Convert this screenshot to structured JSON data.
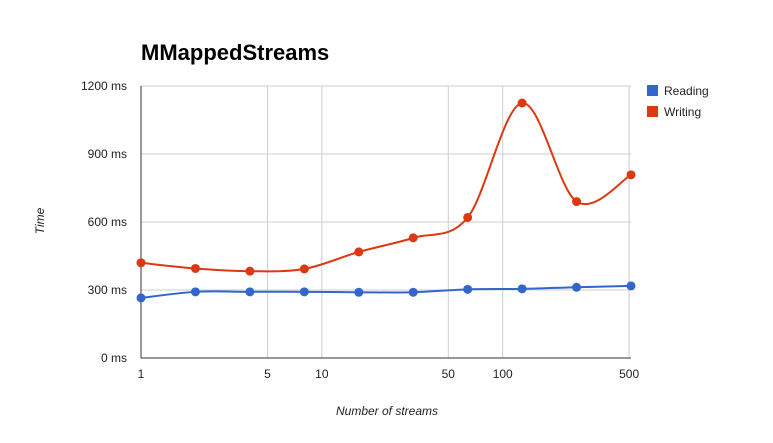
{
  "chart_data": {
    "type": "line",
    "title": "MMappedStreams",
    "xlabel": "Number of streams",
    "ylabel": "Time",
    "x_scale": "log",
    "x": [
      1,
      2,
      4,
      8,
      16,
      32,
      64,
      128,
      256,
      512
    ],
    "x_ticks": [
      {
        "value": 1,
        "label": "1"
      },
      {
        "value": 5,
        "label": "5"
      },
      {
        "value": 10,
        "label": "10"
      },
      {
        "value": 50,
        "label": "50"
      },
      {
        "value": 100,
        "label": "100"
      },
      {
        "value": 500,
        "label": "500"
      }
    ],
    "ylim": [
      0,
      1200
    ],
    "y_ticks": [
      {
        "value": 0,
        "label": "0 ms"
      },
      {
        "value": 300,
        "label": "300 ms"
      },
      {
        "value": 600,
        "label": "600 ms"
      },
      {
        "value": 900,
        "label": "900 ms"
      },
      {
        "value": 1200,
        "label": "1200 ms"
      }
    ],
    "grid": true,
    "legend_position": "right",
    "series": [
      {
        "name": "Reading",
        "color": "#3366cc",
        "values": [
          265,
          292,
          292,
          292,
          290,
          290,
          303,
          305,
          312,
          318
        ]
      },
      {
        "name": "Writing",
        "color": "#dc3912",
        "values": [
          420,
          395,
          383,
          393,
          468,
          530,
          620,
          1125,
          690,
          808
        ]
      }
    ]
  }
}
